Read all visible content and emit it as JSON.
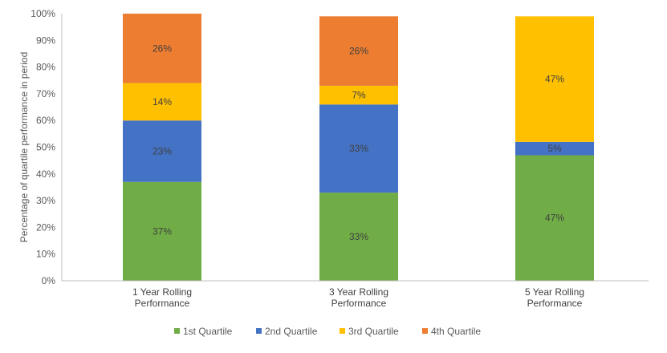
{
  "chart_data": {
    "type": "bar",
    "stacked": true,
    "percent_stacked": true,
    "title": "",
    "xlabel": "",
    "ylabel": "Percentage of quartile performance in period",
    "ylim": [
      0,
      100
    ],
    "yticks": [
      "0%",
      "10%",
      "20%",
      "30%",
      "40%",
      "50%",
      "60%",
      "70%",
      "80%",
      "90%",
      "100%"
    ],
    "grid": false,
    "legend_position": "bottom",
    "categories": [
      [
        "1 Year Rolling",
        "Performance"
      ],
      [
        "3 Year Rolling",
        "Performance"
      ],
      [
        "5 Year Rolling",
        "Performance"
      ]
    ],
    "series": [
      {
        "name": "1st Quartile",
        "color": "#70AD47",
        "values": [
          37,
          33,
          47
        ],
        "labels": [
          "37%",
          "33%",
          "47%"
        ]
      },
      {
        "name": "2nd Quartile",
        "color": "#4472C4",
        "values": [
          23,
          33,
          5
        ],
        "labels": [
          "23%",
          "33%",
          "5%"
        ]
      },
      {
        "name": "3rd Quartile",
        "color": "#FFC000",
        "values": [
          14,
          7,
          47
        ],
        "labels": [
          "14%",
          "7%",
          "47%"
        ]
      },
      {
        "name": "4th Quartile",
        "color": "#ED7D31",
        "values": [
          26,
          26,
          0
        ],
        "labels": [
          "26%",
          "26%",
          ""
        ]
      }
    ]
  }
}
